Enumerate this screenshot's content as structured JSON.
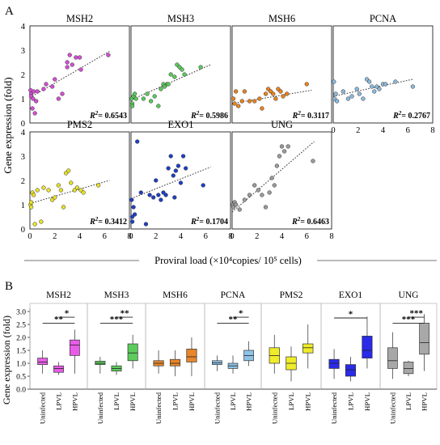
{
  "panel_a": {
    "letter": "A",
    "ylabel": "Gene expression (fold)",
    "xlabel": "Proviral load (×10⁴copies/ 10⁵ cells)",
    "r2_prefix": "R",
    "r2_sup": "2",
    "r2_eq": "= ",
    "y_ticks": [
      "0",
      "1",
      "2",
      "3",
      "4"
    ],
    "x_ticks": [
      "0",
      "2",
      "4",
      "6",
      "8"
    ]
  },
  "panel_b": {
    "letter": "B",
    "ylabel": "Gene expression (fold)",
    "y_ticks": [
      "0.0",
      "0.5",
      "1.0",
      "1.5",
      "2.0",
      "2.5",
      "3.0"
    ],
    "groups": [
      "Uninfected",
      "LPVL",
      "HPVL"
    ]
  },
  "chart_data": [
    {
      "type": "scatter",
      "panel": "A",
      "xlim": [
        0,
        8
      ],
      "ylim": [
        0,
        4
      ],
      "xlabel": "Proviral load (×10⁴copies/ 10⁵ cells)",
      "ylabel": "Gene expression (fold)",
      "trendline": "linear (dotted)",
      "series": [
        {
          "name": "MSH2",
          "color": "#d24fd2",
          "r2": "0.6543",
          "x": [
            0.05,
            0.1,
            0.1,
            0.2,
            0.25,
            0.3,
            0.4,
            0.5,
            0.6,
            1.1,
            1.3,
            1.8,
            2.0,
            2.3,
            2.6,
            3.0,
            3.0,
            3.2,
            3.4,
            3.7,
            4.0,
            4.1,
            6.3
          ],
          "y": [
            1.35,
            1.2,
            1.1,
            0.6,
            1.0,
            1.3,
            0.4,
            0.9,
            1.3,
            1.4,
            1.6,
            1.5,
            1.8,
            1.0,
            1.2,
            2.3,
            2.5,
            2.8,
            2.4,
            2.7,
            2.7,
            2.2,
            2.8
          ],
          "trend": [
            [
              0,
              1.05
            ],
            [
              6.4,
              2.95
            ]
          ]
        },
        {
          "name": "MSH3",
          "color": "#5cc85c",
          "r2": "0.5986",
          "x": [
            0.05,
            0.1,
            0.1,
            0.2,
            0.3,
            0.4,
            1.0,
            1.3,
            1.6,
            1.9,
            2.2,
            2.4,
            2.6,
            2.7,
            2.9,
            3.0,
            3.2,
            3.5,
            3.7,
            3.9,
            4.1,
            4.3,
            5.6
          ],
          "y": [
            1.0,
            0.8,
            0.7,
            1.1,
            1.2,
            1.0,
            1.0,
            1.2,
            0.9,
            1.1,
            0.7,
            1.4,
            1.6,
            1.5,
            1.6,
            1.6,
            2.0,
            1.9,
            2.4,
            2.3,
            2.2,
            2.0,
            2.3
          ],
          "trend": [
            [
              0,
              0.95
            ],
            [
              6.4,
              2.4
            ]
          ]
        },
        {
          "name": "MSH6",
          "color": "#e8821e",
          "r2": "0.3117",
          "x": [
            0.1,
            0.2,
            0.3,
            0.5,
            0.8,
            1.0,
            1.4,
            1.8,
            2.2,
            2.4,
            2.7,
            2.9,
            3.1,
            3.3,
            3.5,
            3.7,
            3.9,
            4.1,
            4.4,
            6.0
          ],
          "y": [
            1.0,
            0.8,
            1.3,
            0.7,
            0.9,
            1.3,
            0.9,
            0.9,
            1.0,
            0.6,
            1.2,
            1.4,
            1.3,
            1.2,
            1.0,
            1.4,
            1.3,
            1.1,
            1.2,
            1.6
          ],
          "trend": [
            [
              0,
              0.8
            ],
            [
              6.4,
              1.35
            ]
          ]
        },
        {
          "name": "PCNA",
          "color": "#8ab9dc",
          "r2": "0.2767",
          "x": [
            0.05,
            0.1,
            0.2,
            0.3,
            0.8,
            1.2,
            1.5,
            1.9,
            2.1,
            2.4,
            2.7,
            2.9,
            3.1,
            3.3,
            3.5,
            3.7,
            4.0,
            4.2,
            5.0,
            6.4
          ],
          "y": [
            1.7,
            1.0,
            1.2,
            0.9,
            1.3,
            1.0,
            1.1,
            1.4,
            1.2,
            1.0,
            1.8,
            1.7,
            1.5,
            1.3,
            1.5,
            1.4,
            1.6,
            1.6,
            1.7,
            1.5
          ],
          "trend": [
            [
              0,
              1.1
            ],
            [
              6.4,
              1.8
            ]
          ]
        },
        {
          "name": "PMS2",
          "color": "#e8e02a",
          "r2": "0.3412",
          "x": [
            0.05,
            0.1,
            0.1,
            0.2,
            0.3,
            0.4,
            0.6,
            0.9,
            1.1,
            1.5,
            1.8,
            2.0,
            2.3,
            2.5,
            2.7,
            2.9,
            3.1,
            3.3,
            3.6,
            3.8,
            4.1,
            4.3,
            5.5
          ],
          "y": [
            1.0,
            0.9,
            1.1,
            1.5,
            1.4,
            0.2,
            1.6,
            0.3,
            1.7,
            1.6,
            1.2,
            1.3,
            1.8,
            1.6,
            0.9,
            2.3,
            2.4,
            1.9,
            1.6,
            1.7,
            1.6,
            1.5,
            1.8
          ],
          "trend": [
            [
              0,
              1.05
            ],
            [
              6.4,
              2.0
            ]
          ]
        },
        {
          "name": "EXO1",
          "color": "#1f3fc4",
          "r2": "0.1704",
          "x": [
            0.05,
            0.1,
            0.1,
            0.2,
            0.3,
            0.5,
            0.8,
            1.2,
            1.5,
            1.8,
            2.0,
            2.2,
            2.4,
            2.6,
            2.8,
            3.0,
            3.2,
            3.4,
            3.5,
            3.6,
            3.8,
            4.0,
            4.2,
            4.4,
            5.8
          ],
          "y": [
            1.2,
            0.5,
            0.3,
            0.9,
            0.6,
            3.6,
            1.5,
            0.2,
            1.4,
            1.3,
            2.0,
            1.4,
            1.2,
            1.5,
            1.4,
            2.5,
            3.0,
            2.2,
            1.3,
            2.4,
            2.6,
            1.9,
            3.0,
            2.5,
            1.8
          ],
          "trend": [
            [
              0,
              1.25
            ],
            [
              6.4,
              2.55
            ]
          ]
        },
        {
          "name": "UNG",
          "color": "#9a9a9a",
          "r2": "0.6463",
          "x": [
            0.05,
            0.1,
            0.2,
            0.3,
            0.6,
            1.0,
            1.4,
            1.8,
            2.1,
            2.4,
            2.7,
            3.0,
            3.2,
            3.4,
            3.6,
            3.8,
            4.0,
            4.2,
            4.5,
            6.5
          ],
          "y": [
            1.0,
            0.9,
            1.1,
            1.0,
            0.8,
            1.2,
            1.4,
            1.8,
            1.6,
            1.4,
            0.9,
            1.5,
            2.1,
            1.8,
            2.6,
            3.0,
            3.4,
            3.2,
            3.4,
            2.8
          ],
          "trend": [
            [
              0,
              0.7
            ],
            [
              6.6,
              3.6
            ]
          ]
        }
      ]
    },
    {
      "type": "box",
      "panel": "B",
      "ylim": [
        0,
        3.0
      ],
      "ylabel": "Gene expression (fold)",
      "categories": [
        "Uninfected",
        "LPVL",
        "HPVL"
      ],
      "series": [
        {
          "name": "MSH2",
          "color": "#e85ce8",
          "boxes": [
            {
              "min": 0.6,
              "q1": 0.95,
              "med": 1.05,
              "q3": 1.2,
              "max": 1.5
            },
            {
              "min": 0.55,
              "q1": 0.65,
              "med": 0.8,
              "q3": 0.9,
              "max": 1.05
            },
            {
              "min": 0.6,
              "q1": 1.3,
              "med": 1.7,
              "q3": 1.9,
              "max": 2.3
            }
          ],
          "sig": [
            {
              "from": 0,
              "to": 2,
              "label": "**"
            },
            {
              "from": 1,
              "to": 2,
              "label": "*"
            }
          ]
        },
        {
          "name": "MSH3",
          "color": "#5ccc5c",
          "boxes": [
            {
              "min": 0.6,
              "q1": 0.95,
              "med": 1.0,
              "q3": 1.08,
              "max": 1.25
            },
            {
              "min": 0.55,
              "q1": 0.7,
              "med": 0.8,
              "q3": 0.9,
              "max": 1.05
            },
            {
              "min": 0.8,
              "q1": 1.1,
              "med": 1.4,
              "q3": 1.75,
              "max": 2.1
            }
          ],
          "sig": [
            {
              "from": 0,
              "to": 2,
              "label": "***"
            },
            {
              "from": 1,
              "to": 2,
              "label": "**"
            }
          ]
        },
        {
          "name": "MSH6",
          "color": "#e8862a",
          "boxes": [
            {
              "min": 0.6,
              "q1": 0.9,
              "med": 1.0,
              "q3": 1.1,
              "max": 1.5
            },
            {
              "min": 0.5,
              "q1": 0.9,
              "med": 1.0,
              "q3": 1.15,
              "max": 1.5
            },
            {
              "min": 0.5,
              "q1": 1.05,
              "med": 1.25,
              "q3": 1.55,
              "max": 2.0
            }
          ],
          "sig": []
        },
        {
          "name": "PCNA",
          "color": "#8ec3e8",
          "boxes": [
            {
              "min": 0.7,
              "q1": 0.95,
              "med": 1.02,
              "q3": 1.1,
              "max": 1.3
            },
            {
              "min": 0.6,
              "q1": 0.8,
              "med": 0.9,
              "q3": 1.0,
              "max": 1.3
            },
            {
              "min": 0.9,
              "q1": 1.1,
              "med": 1.3,
              "q3": 1.5,
              "max": 1.85
            }
          ],
          "sig": [
            {
              "from": 0,
              "to": 2,
              "label": "**"
            },
            {
              "from": 1,
              "to": 2,
              "label": "*"
            }
          ]
        },
        {
          "name": "PMS2",
          "color": "#f0ec2a",
          "boxes": [
            {
              "min": 0.6,
              "q1": 1.0,
              "med": 1.3,
              "q3": 1.6,
              "max": 2.1
            },
            {
              "min": 0.3,
              "q1": 0.75,
              "med": 1.0,
              "q3": 1.25,
              "max": 1.65
            },
            {
              "min": 0.8,
              "q1": 1.4,
              "med": 1.6,
              "q3": 1.75,
              "max": 2.5
            }
          ],
          "sig": []
        },
        {
          "name": "EXO1",
          "color": "#2a2ae8",
          "boxes": [
            {
              "min": 0.4,
              "q1": 0.8,
              "med": 1.0,
              "q3": 1.15,
              "max": 1.55
            },
            {
              "min": 0.3,
              "q1": 0.5,
              "med": 0.75,
              "q3": 0.95,
              "max": 1.25
            },
            {
              "min": 0.8,
              "q1": 1.2,
              "med": 1.5,
              "q3": 2.05,
              "max": 2.8
            }
          ],
          "sig": [
            {
              "from": 0,
              "to": 2,
              "label": "*"
            }
          ]
        },
        {
          "name": "UNG",
          "color": "#a8a8a8",
          "boxes": [
            {
              "min": 0.4,
              "q1": 0.8,
              "med": 1.1,
              "q3": 1.6,
              "max": 2.2
            },
            {
              "min": 0.5,
              "q1": 0.6,
              "med": 0.8,
              "q3": 1.05,
              "max": 1.1
            },
            {
              "min": 0.7,
              "q1": 1.35,
              "med": 1.8,
              "q3": 2.55,
              "max": 2.9
            }
          ],
          "sig": [
            {
              "from": 0,
              "to": 2,
              "label": "***"
            },
            {
              "from": 1,
              "to": 2,
              "label": "***"
            }
          ]
        }
      ]
    }
  ]
}
